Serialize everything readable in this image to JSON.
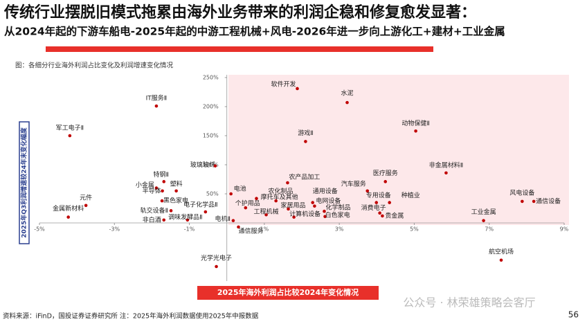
{
  "header": {
    "title": "传统行业摆脱旧模式拖累由海外业务带来的利润企稳和修复愈发显著：",
    "subtitle": "从2024年起的下游车船电-2025年起的中游工程机械+风电-2026年进一步向上游化工+建材+工业金属"
  },
  "chart_data": {
    "type": "scatter",
    "caption": "图：各细分行业海外利润占比变化及利润增速变化情况",
    "x_label": "2025年海外利润占比较2024年变化情况",
    "y_label": "2025年Q3利润增速较24年末变化幅度",
    "color": "#c00000",
    "xlim": [
      -5,
      9
    ],
    "ylim": [
      -100,
      250
    ],
    "xticks": [
      {
        "value": -5,
        "label": "-5%"
      },
      {
        "value": -3,
        "label": "-3%"
      },
      {
        "value": -1,
        "label": "-1%"
      },
      {
        "value": 1,
        "label": "1%"
      },
      {
        "value": 3,
        "label": "3%"
      },
      {
        "value": 5,
        "label": "5%"
      },
      {
        "value": 7,
        "label": "7%"
      },
      {
        "value": 9,
        "label": "9%"
      }
    ],
    "yticks": [
      {
        "value": 50,
        "label": "50%"
      },
      {
        "value": 100,
        "label": "100%"
      },
      {
        "value": 150,
        "label": "150%"
      },
      {
        "value": 200,
        "label": "200%"
      },
      {
        "value": 250,
        "label": "250%"
      }
    ],
    "labels": [
      "软件开发",
      "水泥",
      "IT服务Ⅱ",
      "动物保健Ⅱ",
      "军工电子Ⅱ",
      "游戏Ⅱ",
      "玻璃玻纤",
      "非金属材料Ⅱ",
      "特钢Ⅱ",
      "医疗服务",
      "农产品加工",
      "汽车服务",
      "小金属",
      "半导体",
      "塑料",
      "电池",
      "农化制品",
      "通用设备",
      "专用设备",
      "种植业",
      "元件",
      "黑色家电",
      "摩托车及其他",
      "电网设备",
      "风电设备",
      "通信设备",
      "个护用品",
      "电子化学品Ⅱ",
      "家居用品",
      "化学制品",
      "消费电子",
      "金属新材料",
      "轨交设备Ⅱ",
      "工程机械",
      "计算机设备",
      "白色家电",
      "贵金属",
      "工业金属",
      "调味发酵品Ⅱ",
      "非白酒",
      "电机Ⅱ",
      "通信服务",
      "光学光电子",
      "航空机场"
    ],
    "x": [
      1.88,
      3.21,
      -1.88,
      5.04,
      -4.19,
      2.1,
      -0.31,
      5.85,
      -1.68,
      4.23,
      1.62,
      3.75,
      -1.88,
      -1.72,
      -1.35,
      0.11,
      0.79,
      2.29,
      3.99,
      4.34,
      -3.76,
      -1.73,
      1.31,
      2.34,
      7.88,
      8.19,
      0.5,
      -0.57,
      1.64,
      2.6,
      4.08,
      -4.23,
      -1.49,
      1.05,
      1.79,
      2.62,
      4.15,
      6.85,
      -1.05,
      -1.68,
      0.17,
      0.31,
      -0.28,
      7.32
    ],
    "values": [
      231,
      207,
      201,
      158,
      150,
      140,
      98,
      86,
      71,
      71,
      69,
      55,
      60,
      55,
      55,
      50,
      42,
      35,
      35,
      35,
      30,
      38,
      38,
      29,
      37,
      37,
      26,
      19,
      24,
      20,
      17,
      10,
      21,
      14,
      10,
      11,
      12,
      4,
      5,
      5,
      4,
      -7,
      -75,
      -64
    ]
  },
  "watermark": "公众号 · 林荣雄策略会客厅",
  "footer": {
    "source": "资料来源：iFinD，国投证券证券研究所   注：2025年海外利润数据使用2025年中报数据",
    "page": "56"
  }
}
